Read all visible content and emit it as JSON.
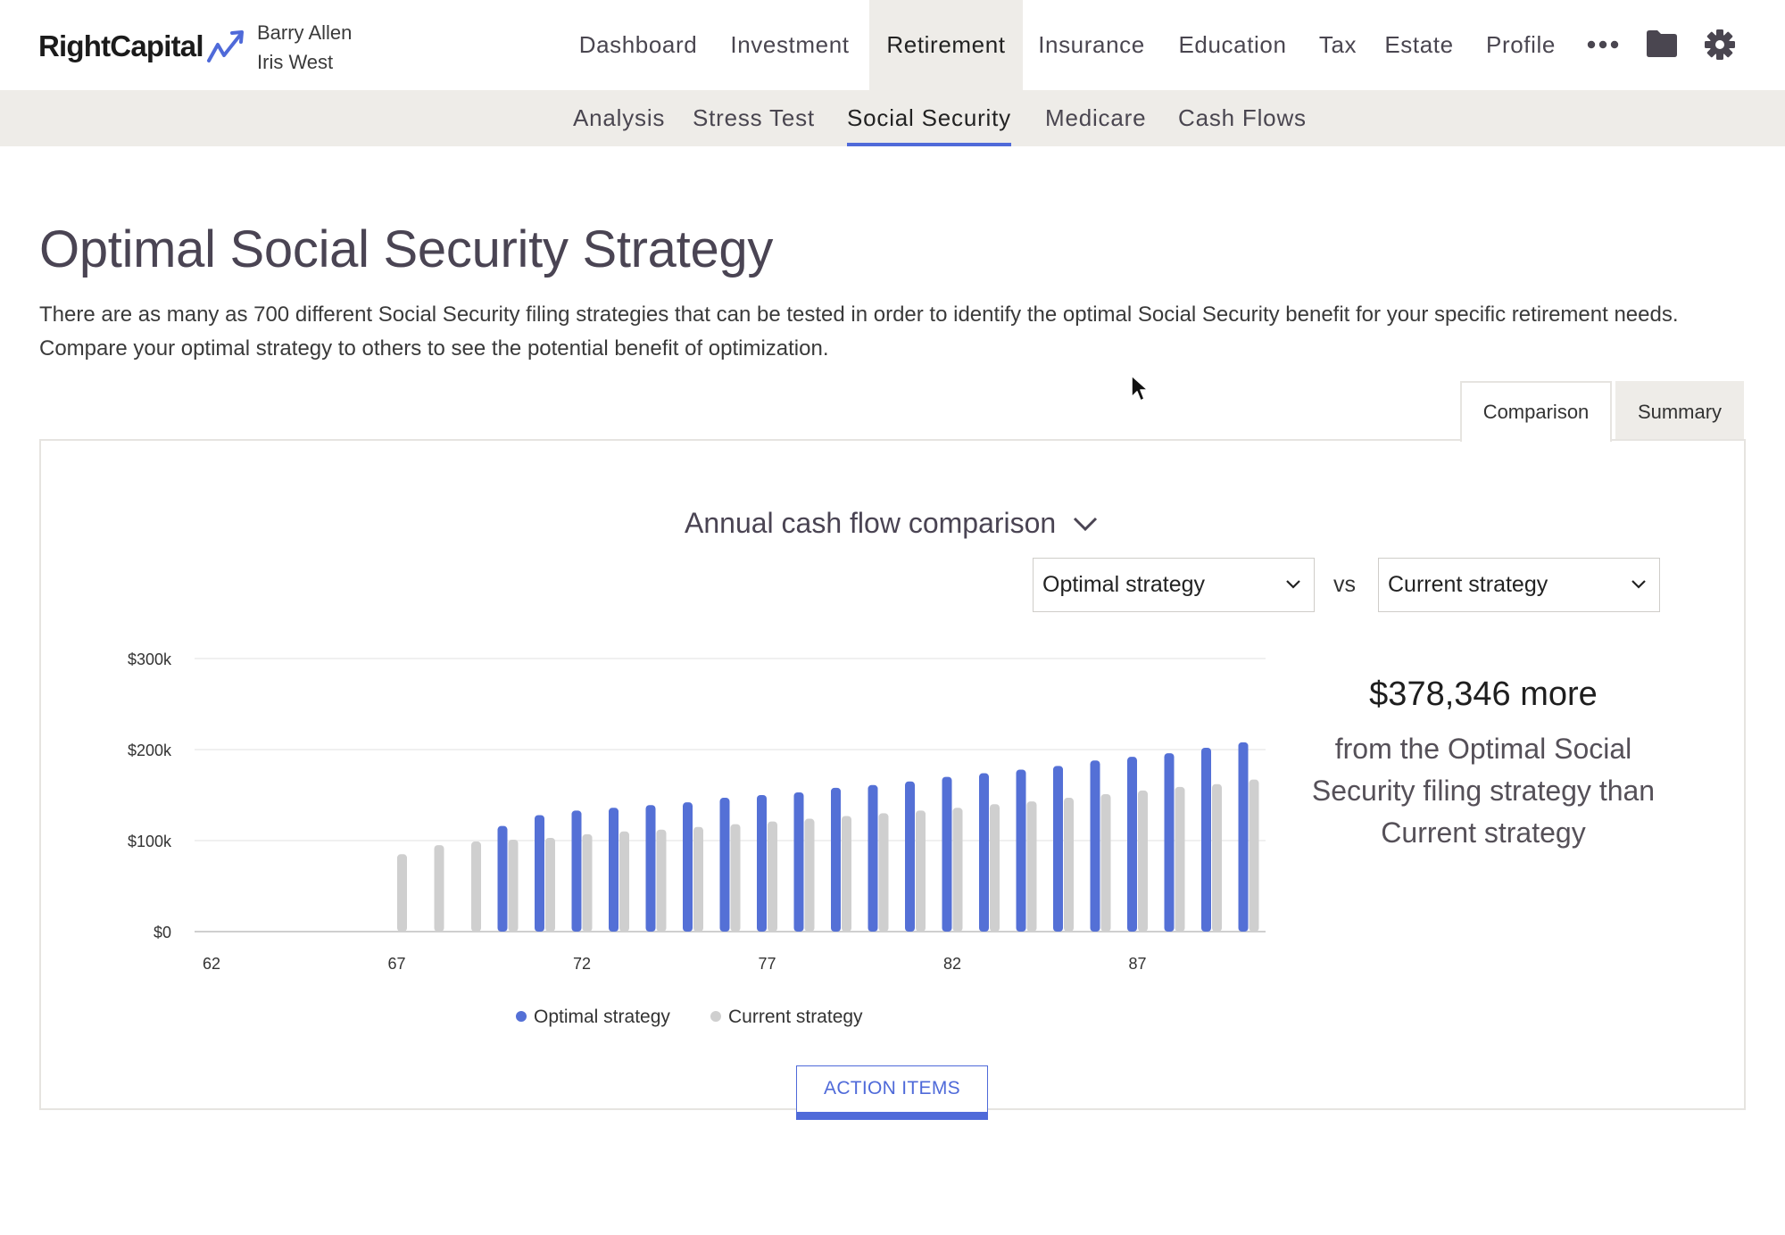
{
  "header": {
    "logo_text": "RightCapital",
    "clients": [
      "Barry Allen",
      "Iris West"
    ],
    "nav": [
      {
        "label": "Dashboard",
        "active": false
      },
      {
        "label": "Investment",
        "active": false
      },
      {
        "label": "Retirement",
        "active": true
      },
      {
        "label": "Insurance",
        "active": false
      },
      {
        "label": "Education",
        "active": false
      },
      {
        "label": "Tax",
        "active": false
      },
      {
        "label": "Estate",
        "active": false
      },
      {
        "label": "Profile",
        "active": false
      }
    ],
    "icons": [
      "more-icon",
      "folder-icon",
      "gear-icon"
    ]
  },
  "subnav": [
    {
      "label": "Analysis",
      "active": false
    },
    {
      "label": "Stress Test",
      "active": false
    },
    {
      "label": "Social Security",
      "active": true
    },
    {
      "label": "Medicare",
      "active": false
    },
    {
      "label": "Cash Flows",
      "active": false
    }
  ],
  "page": {
    "title": "Optimal Social Security Strategy",
    "description": "There are as many as 700 different Social Security filing strategies that can be tested in order to identify the optimal Social Security benefit for your specific retirement needs. Compare your optimal strategy to others to see the potential benefit of optimization."
  },
  "tabs": [
    {
      "label": "Comparison",
      "active": true
    },
    {
      "label": "Summary",
      "active": false
    }
  ],
  "chart_view": {
    "heading": "Annual cash flow comparison",
    "select_left": "Optimal strategy",
    "vs_label": "vs",
    "select_right": "Current strategy"
  },
  "summary": {
    "amount_text": "$378,346 more",
    "detail_text": "from the Optimal Social Security filing strategy than Current strategy"
  },
  "action_button": "ACTION ITEMS",
  "colors": {
    "accent": "#4f6ad9",
    "optimal_bar": "#5470d6",
    "current_bar": "#cfcfcf",
    "nav_active_bg": "#eeece8"
  },
  "chart_data": {
    "type": "bar",
    "x": [
      62,
      63,
      64,
      65,
      66,
      67,
      68,
      69,
      70,
      71,
      72,
      73,
      74,
      75,
      76,
      77,
      78,
      79,
      80,
      81,
      82,
      83,
      84,
      85,
      86,
      87,
      88,
      89,
      90
    ],
    "x_ticks": [
      "62",
      "67",
      "72",
      "77",
      "82",
      "87"
    ],
    "y_ticks": [
      "$0",
      "$100k",
      "$200k",
      "$300k"
    ],
    "ylim": [
      0,
      300000
    ],
    "grid": true,
    "legend_position": "bottom",
    "series": [
      {
        "name": "Optimal strategy",
        "color": "#5470d6",
        "values": [
          0,
          0,
          0,
          0,
          0,
          0,
          0,
          0,
          116000,
          128000,
          133000,
          136000,
          139000,
          142000,
          147000,
          150000,
          153000,
          158000,
          161000,
          165000,
          170000,
          174000,
          178000,
          182000,
          188000,
          192000,
          196000,
          202000,
          208000
        ]
      },
      {
        "name": "Current strategy",
        "color": "#cfcfcf",
        "values": [
          0,
          0,
          0,
          0,
          0,
          85000,
          95000,
          99000,
          101000,
          103000,
          107000,
          110000,
          112000,
          115000,
          118000,
          121000,
          124000,
          127000,
          130000,
          133000,
          136000,
          140000,
          143000,
          147000,
          151000,
          155000,
          159000,
          162000,
          167000
        ]
      }
    ]
  }
}
